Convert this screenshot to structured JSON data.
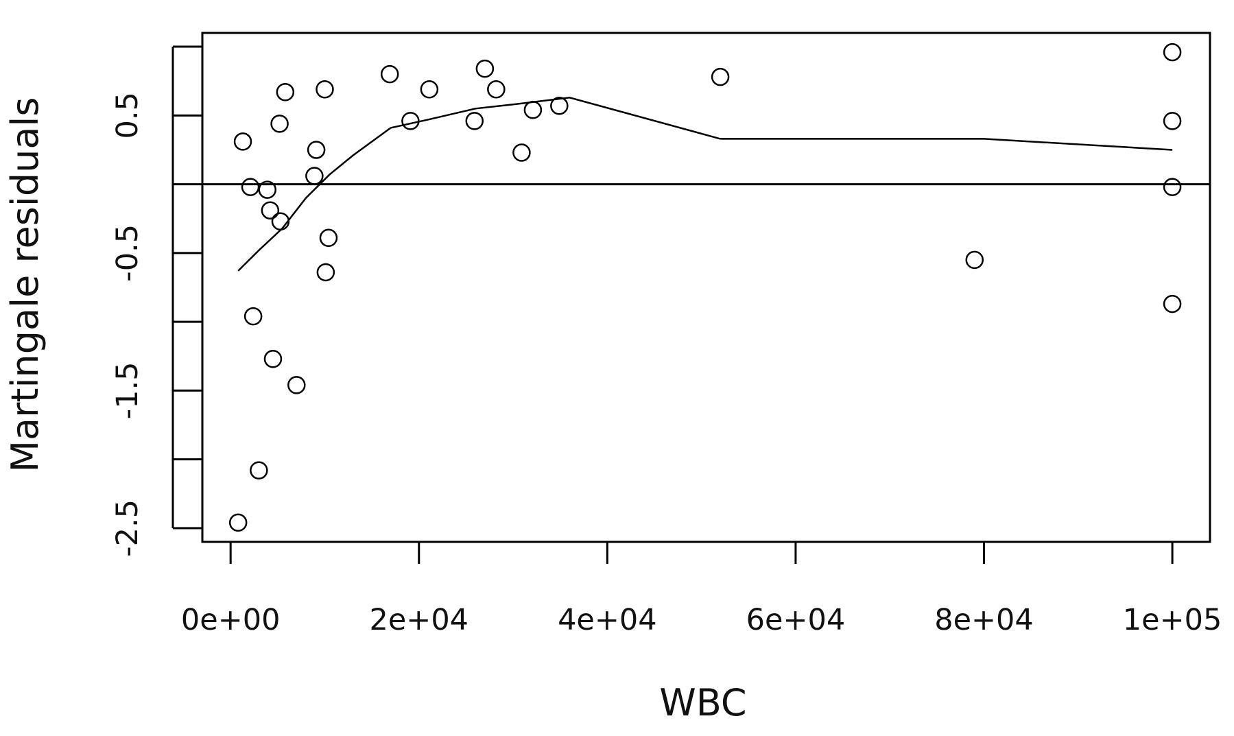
{
  "chart_data": {
    "type": "scatter",
    "title": "",
    "xlabel": "WBC",
    "ylabel": "Martingale residuals",
    "xlim": [
      -3000,
      104000
    ],
    "ylim": [
      -2.6,
      1.1
    ],
    "grid": false,
    "legend": "none",
    "x_ticks": [
      {
        "value": 0,
        "label": "0e+00"
      },
      {
        "value": 20000,
        "label": "2e+04"
      },
      {
        "value": 40000,
        "label": "4e+04"
      },
      {
        "value": 60000,
        "label": "6e+04"
      },
      {
        "value": 80000,
        "label": "8e+04"
      },
      {
        "value": 100000,
        "label": "1e+05"
      }
    ],
    "y_ticks": [
      {
        "value": -2.5,
        "label": "-2.5"
      },
      {
        "value": -2.0,
        "label": ""
      },
      {
        "value": -1.5,
        "label": "-1.5"
      },
      {
        "value": -1.0,
        "label": ""
      },
      {
        "value": -0.5,
        "label": "-0.5"
      },
      {
        "value": 0.0,
        "label": ""
      },
      {
        "value": 0.5,
        "label": "0.5"
      },
      {
        "value": 1.0,
        "label": ""
      }
    ],
    "reference_line_y": 0,
    "series": [
      {
        "type": "scatter",
        "marker": "open-circle",
        "points": [
          {
            "x": 800,
            "y": -2.46
          },
          {
            "x": 1300,
            "y": 0.31
          },
          {
            "x": 2100,
            "y": -0.02
          },
          {
            "x": 2400,
            "y": -0.96
          },
          {
            "x": 3000,
            "y": -2.08
          },
          {
            "x": 3900,
            "y": -0.04
          },
          {
            "x": 4200,
            "y": -0.19
          },
          {
            "x": 4500,
            "y": -1.27
          },
          {
            "x": 5200,
            "y": 0.44
          },
          {
            "x": 5300,
            "y": -0.27
          },
          {
            "x": 5800,
            "y": 0.67
          },
          {
            "x": 7000,
            "y": -1.46
          },
          {
            "x": 8900,
            "y": 0.06
          },
          {
            "x": 9100,
            "y": 0.25
          },
          {
            "x": 10000,
            "y": 0.69
          },
          {
            "x": 10100,
            "y": -0.64
          },
          {
            "x": 10400,
            "y": -0.39
          },
          {
            "x": 16900,
            "y": 0.8
          },
          {
            "x": 19100,
            "y": 0.46
          },
          {
            "x": 21100,
            "y": 0.69
          },
          {
            "x": 25900,
            "y": 0.46
          },
          {
            "x": 27000,
            "y": 0.84
          },
          {
            "x": 28200,
            "y": 0.69
          },
          {
            "x": 30900,
            "y": 0.23
          },
          {
            "x": 32100,
            "y": 0.54
          },
          {
            "x": 34900,
            "y": 0.57
          },
          {
            "x": 52000,
            "y": 0.78
          },
          {
            "x": 79000,
            "y": -0.55
          },
          {
            "x": 100000,
            "y": 0.96
          },
          {
            "x": 100000,
            "y": 0.46
          },
          {
            "x": 100000,
            "y": -0.02
          },
          {
            "x": 100000,
            "y": -0.87
          }
        ]
      },
      {
        "type": "line",
        "points": [
          {
            "x": 800,
            "y": -0.63
          },
          {
            "x": 3000,
            "y": -0.48
          },
          {
            "x": 5500,
            "y": -0.32
          },
          {
            "x": 8000,
            "y": -0.1
          },
          {
            "x": 10500,
            "y": 0.07
          },
          {
            "x": 13000,
            "y": 0.21
          },
          {
            "x": 17000,
            "y": 0.41
          },
          {
            "x": 21000,
            "y": 0.47
          },
          {
            "x": 26000,
            "y": 0.55
          },
          {
            "x": 30000,
            "y": 0.58
          },
          {
            "x": 36000,
            "y": 0.63
          },
          {
            "x": 52000,
            "y": 0.33
          },
          {
            "x": 80000,
            "y": 0.33
          },
          {
            "x": 100000,
            "y": 0.25
          }
        ]
      }
    ]
  }
}
